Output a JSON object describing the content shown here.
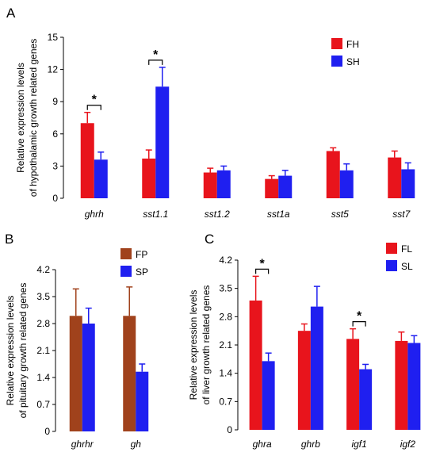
{
  "chart_data": [
    {
      "panel": "A",
      "type": "bar",
      "ylabel_lines": [
        "Relative  expression levels",
        "of  hypothalamic growth related genes"
      ],
      "ylim": [
        0,
        15
      ],
      "yticks": [
        "0",
        "3",
        "6",
        "9",
        "12",
        "15"
      ],
      "categories": [
        "ghrh",
        "sst1.1",
        "sst1.2",
        "sst1a",
        "sst5",
        "sst7"
      ],
      "series": [
        {
          "name": "FH",
          "color": "#e8141c",
          "values": [
            7.0,
            3.7,
            2.4,
            1.8,
            4.4,
            3.8
          ],
          "errors": [
            1.0,
            0.8,
            0.4,
            0.3,
            0.3,
            0.6
          ]
        },
        {
          "name": "SH",
          "color": "#1f1ff0",
          "values": [
            3.6,
            10.4,
            2.6,
            2.1,
            2.6,
            2.7
          ],
          "errors": [
            0.7,
            1.8,
            0.4,
            0.5,
            0.6,
            0.6
          ]
        }
      ],
      "significance": [
        {
          "category_index": 0,
          "label": "*"
        },
        {
          "category_index": 1,
          "label": "*"
        }
      ],
      "legend": "top-right",
      "grid": false
    },
    {
      "panel": "B",
      "type": "bar",
      "ylabel_lines": [
        "Relative  expression levels",
        "of  pituitary growth related genes"
      ],
      "ylim": [
        0,
        4.2
      ],
      "yticks": [
        "0",
        "0.7",
        "1.4",
        "2.1",
        "2.8",
        "3.5",
        "4.2"
      ],
      "categories": [
        "ghrhr",
        "gh"
      ],
      "series": [
        {
          "name": "FP",
          "color": "#a0421c",
          "values": [
            3.0,
            3.0
          ],
          "errors": [
            0.7,
            0.75
          ]
        },
        {
          "name": "SP",
          "color": "#1f1ff0",
          "values": [
            2.8,
            1.55
          ],
          "errors": [
            0.4,
            0.2
          ]
        }
      ],
      "significance": [],
      "legend": "top-right",
      "grid": false
    },
    {
      "panel": "C",
      "type": "bar",
      "ylabel_lines": [
        "Relative  expression levels",
        "of  liver growth related genes"
      ],
      "ylim": [
        0,
        4.2
      ],
      "yticks": [
        "0",
        "0.7",
        "1.4",
        "2.1",
        "2.8",
        "3.5",
        "4.2"
      ],
      "categories": [
        "ghra",
        "ghrb",
        "igf1",
        "igf2"
      ],
      "series": [
        {
          "name": "FL",
          "color": "#e8141c",
          "values": [
            3.2,
            2.45,
            2.25,
            2.2
          ],
          "errors": [
            0.6,
            0.17,
            0.25,
            0.22
          ]
        },
        {
          "name": "SL",
          "color": "#1f1ff0",
          "values": [
            1.7,
            3.05,
            1.5,
            2.15
          ],
          "errors": [
            0.2,
            0.5,
            0.12,
            0.18
          ]
        }
      ],
      "significance": [
        {
          "category_index": 0,
          "label": "*"
        },
        {
          "category_index": 2,
          "label": "*"
        }
      ],
      "legend": "top-right",
      "grid": false
    }
  ]
}
